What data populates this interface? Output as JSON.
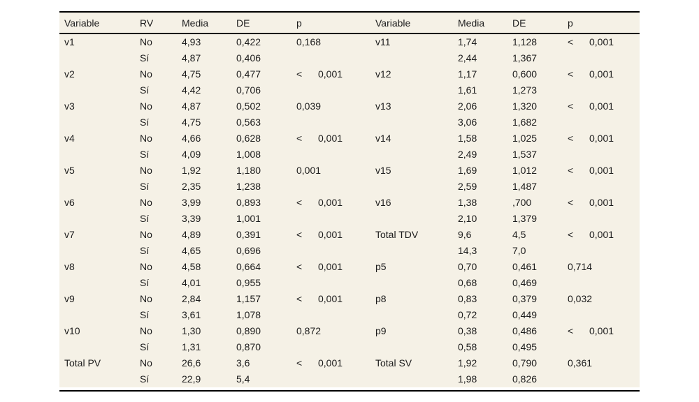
{
  "colors": {
    "page_background": "#ffffff",
    "table_background": "#f5f1e6",
    "text": "#1c1c1c",
    "rule": "#000000"
  },
  "table": {
    "left": {
      "headers": [
        "Variable",
        "RV",
        "Media",
        "DE",
        "p"
      ],
      "rows": [
        {
          "variable": "v1",
          "groups": [
            {
              "rv": "No",
              "media": "4,93",
              "de": "0,422"
            },
            {
              "rv": "Sí",
              "media": "4,87",
              "de": "0,406"
            }
          ],
          "p": {
            "lt": false,
            "value": "0,168"
          }
        },
        {
          "variable": "v2",
          "groups": [
            {
              "rv": "No",
              "media": "4,75",
              "de": "0,477"
            },
            {
              "rv": "Sí",
              "media": "4,42",
              "de": "0,706"
            }
          ],
          "p": {
            "lt": true,
            "value": "0,001"
          }
        },
        {
          "variable": "v3",
          "groups": [
            {
              "rv": "No",
              "media": "4,87",
              "de": "0,502"
            },
            {
              "rv": "Sí",
              "media": "4,75",
              "de": "0,563"
            }
          ],
          "p": {
            "lt": false,
            "value": "0,039"
          }
        },
        {
          "variable": "v4",
          "groups": [
            {
              "rv": "No",
              "media": "4,66",
              "de": "0,628"
            },
            {
              "rv": "Sí",
              "media": "4,09",
              "de": "1,008"
            }
          ],
          "p": {
            "lt": true,
            "value": "0,001"
          }
        },
        {
          "variable": "v5",
          "groups": [
            {
              "rv": "No",
              "media": "1,92",
              "de": "1,180"
            },
            {
              "rv": "Sí",
              "media": "2,35",
              "de": "1,238"
            }
          ],
          "p": {
            "lt": false,
            "value": "0,001"
          }
        },
        {
          "variable": "v6",
          "groups": [
            {
              "rv": "No",
              "media": "3,99",
              "de": "0,893"
            },
            {
              "rv": "Sí",
              "media": "3,39",
              "de": "1,001"
            }
          ],
          "p": {
            "lt": true,
            "value": "0,001"
          }
        },
        {
          "variable": "v7",
          "groups": [
            {
              "rv": "No",
              "media": "4,89",
              "de": "0,391"
            },
            {
              "rv": "Sí",
              "media": "4,65",
              "de": "0,696"
            }
          ],
          "p": {
            "lt": true,
            "value": "0,001"
          }
        },
        {
          "variable": "v8",
          "groups": [
            {
              "rv": "No",
              "media": "4,58",
              "de": "0,664"
            },
            {
              "rv": "Sí",
              "media": "4,01",
              "de": "0,955"
            }
          ],
          "p": {
            "lt": true,
            "value": "0,001"
          }
        },
        {
          "variable": "v9",
          "groups": [
            {
              "rv": "No",
              "media": "2,84",
              "de": "1,157"
            },
            {
              "rv": "Sí",
              "media": "3,61",
              "de": "1,078"
            }
          ],
          "p": {
            "lt": true,
            "value": "0,001"
          }
        },
        {
          "variable": "v10",
          "groups": [
            {
              "rv": "No",
              "media": "1,30",
              "de": "0,890"
            },
            {
              "rv": "Sí",
              "media": "1,31",
              "de": "0,870"
            }
          ],
          "p": {
            "lt": false,
            "value": "0,872"
          }
        },
        {
          "variable": "Total PV",
          "groups": [
            {
              "rv": "No",
              "media": "26,6",
              "de": "3,6"
            },
            {
              "rv": "Sí",
              "media": "22,9",
              "de": "5,4"
            }
          ],
          "p": {
            "lt": true,
            "value": "0,001"
          }
        }
      ]
    },
    "right": {
      "headers": [
        "Variable",
        "Media",
        "DE",
        "p"
      ],
      "rows": [
        {
          "variable": "v11",
          "groups": [
            {
              "media": "1,74",
              "de": "1,128"
            },
            {
              "media": "2,44",
              "de": "1,367"
            }
          ],
          "p": {
            "lt": true,
            "value": "0,001"
          }
        },
        {
          "variable": "v12",
          "groups": [
            {
              "media": "1,17",
              "de": "0,600"
            },
            {
              "media": "1,61",
              "de": "1,273"
            }
          ],
          "p": {
            "lt": true,
            "value": "0,001"
          }
        },
        {
          "variable": "v13",
          "groups": [
            {
              "media": "2,06",
              "de": "1,320"
            },
            {
              "media": "3,06",
              "de": "1,682"
            }
          ],
          "p": {
            "lt": true,
            "value": "0,001"
          }
        },
        {
          "variable": "v14",
          "groups": [
            {
              "media": "1,58",
              "de": "1,025"
            },
            {
              "media": "2,49",
              "de": "1,537"
            }
          ],
          "p": {
            "lt": true,
            "value": "0,001"
          }
        },
        {
          "variable": "v15",
          "groups": [
            {
              "media": "1,69",
              "de": "1,012"
            },
            {
              "media": "2,59",
              "de": "1,487"
            }
          ],
          "p": {
            "lt": true,
            "value": "0,001"
          }
        },
        {
          "variable": "v16",
          "groups": [
            {
              "media": "1,38",
              "de": ",700"
            },
            {
              "media": "2,10",
              "de": "1,379"
            }
          ],
          "p": {
            "lt": true,
            "value": "0,001"
          }
        },
        {
          "variable": "Total TDV",
          "groups": [
            {
              "media": "9,6",
              "de": "4,5"
            },
            {
              "media": "14,3",
              "de": "7,0"
            }
          ],
          "p": {
            "lt": true,
            "value": "0,001"
          }
        },
        {
          "variable": "p5",
          "groups": [
            {
              "media": "0,70",
              "de": "0,461"
            },
            {
              "media": "0,68",
              "de": "0,469"
            }
          ],
          "p": {
            "lt": false,
            "value": "0,714"
          }
        },
        {
          "variable": "p8",
          "groups": [
            {
              "media": "0,83",
              "de": "0,379"
            },
            {
              "media": "0,72",
              "de": "0,449"
            }
          ],
          "p": {
            "lt": false,
            "value": "0,032"
          }
        },
        {
          "variable": "p9",
          "groups": [
            {
              "media": "0,38",
              "de": "0,486"
            },
            {
              "media": "0,58",
              "de": "0,495"
            }
          ],
          "p": {
            "lt": true,
            "value": "0,001"
          }
        },
        {
          "variable": "Total SV",
          "groups": [
            {
              "media": "1,92",
              "de": "0,790"
            },
            {
              "media": "1,98",
              "de": "0,826"
            }
          ],
          "p": {
            "lt": false,
            "value": "0,361"
          }
        }
      ]
    },
    "less_than_symbol": "<"
  }
}
